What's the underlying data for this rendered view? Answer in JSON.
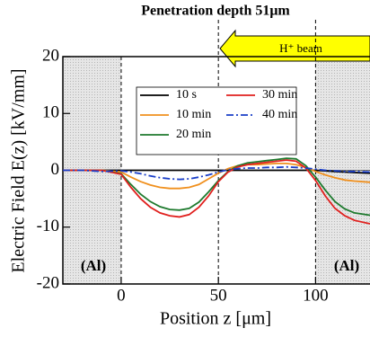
{
  "chart_data": {
    "type": "line",
    "title": "Penetration depth 51μm",
    "beam_label": "H⁺ beam",
    "annotations": [
      "(Al)",
      "(Al)"
    ],
    "x_label": "Position z [μm]",
    "y_label": "Electric Field E(z) [kV/mm]",
    "x": [
      -30,
      -20,
      -10,
      0,
      5,
      10,
      15,
      20,
      25,
      30,
      35,
      40,
      45,
      50,
      55,
      60,
      65,
      70,
      75,
      80,
      85,
      90,
      95,
      100,
      105,
      110,
      115,
      120,
      128
    ],
    "series": [
      {
        "name": "10 s",
        "color": "#000000",
        "dash": "none",
        "values": [
          0,
          0,
          0,
          0,
          0,
          0,
          0,
          0,
          0,
          0,
          0,
          0,
          0,
          0,
          0,
          0,
          0,
          0,
          0,
          0,
          0,
          0,
          0,
          0,
          -0.1,
          -0.2,
          -0.3,
          -0.4,
          -0.5
        ]
      },
      {
        "name": "10 min",
        "color": "#f0901e",
        "dash": "none",
        "values": [
          0,
          0,
          0,
          -0.3,
          -1.2,
          -2,
          -2.6,
          -3,
          -3.2,
          -3.2,
          -3,
          -2.5,
          -1.5,
          -0.5,
          0.3,
          0.8,
          1,
          1,
          1.1,
          1.2,
          1.2,
          1,
          0.5,
          -0.2,
          -0.8,
          -1.3,
          -1.7,
          -1.9,
          -2.1
        ]
      },
      {
        "name": "20 min",
        "color": "#1e7a2e",
        "dash": "none",
        "values": [
          0,
          0,
          0,
          -0.6,
          -2.5,
          -4.2,
          -5.5,
          -6.4,
          -6.9,
          -7,
          -6.7,
          -5.6,
          -3.8,
          -1.8,
          -0.2,
          0.8,
          1.3,
          1.5,
          1.7,
          1.9,
          2.1,
          2,
          0.8,
          -1.2,
          -3.5,
          -5.5,
          -6.8,
          -7.5,
          -7.9
        ]
      },
      {
        "name": "30 min",
        "color": "#e0201e",
        "dash": "none",
        "values": [
          0,
          0,
          0,
          -0.7,
          -3,
          -5,
          -6.5,
          -7.5,
          -8,
          -8.2,
          -7.8,
          -6.5,
          -4.5,
          -2,
          -0.3,
          0.6,
          1,
          1.2,
          1.4,
          1.6,
          1.8,
          1.6,
          0.4,
          -1.8,
          -4.5,
          -6.7,
          -8,
          -8.8,
          -9.4
        ]
      },
      {
        "name": "40 min",
        "color": "#1a3ec8",
        "dash": "8 3 2 3",
        "values": [
          0,
          0,
          -0.2,
          -0.1,
          -0.3,
          -0.6,
          -1,
          -1.3,
          -1.5,
          -1.6,
          -1.5,
          -1.2,
          -0.8,
          -0.3,
          0.1,
          0.3,
          0.4,
          0.4,
          0.5,
          0.5,
          0.6,
          0.5,
          0.4,
          0.2,
          0,
          -0.1,
          -0.2,
          -0.2,
          -0.3
        ]
      }
    ],
    "xlim": [
      -30,
      128
    ],
    "ylim": [
      -20,
      20
    ],
    "xticks": [
      0,
      50,
      100
    ],
    "yticks": [
      -20,
      -10,
      0,
      10,
      20
    ],
    "vlines": [
      0,
      50,
      100
    ],
    "shaded": [
      [
        -30,
        0
      ],
      [
        100,
        128
      ]
    ]
  }
}
